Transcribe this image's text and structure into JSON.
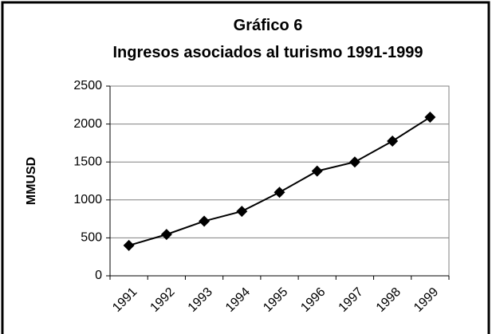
{
  "chart_data": {
    "type": "line",
    "title": "Gráfico 6",
    "subtitle": "Ingresos asociados al turismo 1991-1999",
    "y_label": "MMUSD",
    "categories": [
      "1991",
      "1992",
      "1993",
      "1994",
      "1995",
      "1996",
      "1997",
      "1998",
      "1999"
    ],
    "values": [
      400,
      545,
      720,
      850,
      1100,
      1380,
      1500,
      1775,
      2090
    ],
    "color": "#000000",
    "ylim": [
      0,
      2500
    ],
    "yticks": [
      0,
      500,
      1000,
      1500,
      2000,
      2500
    ],
    "grid": true
  }
}
